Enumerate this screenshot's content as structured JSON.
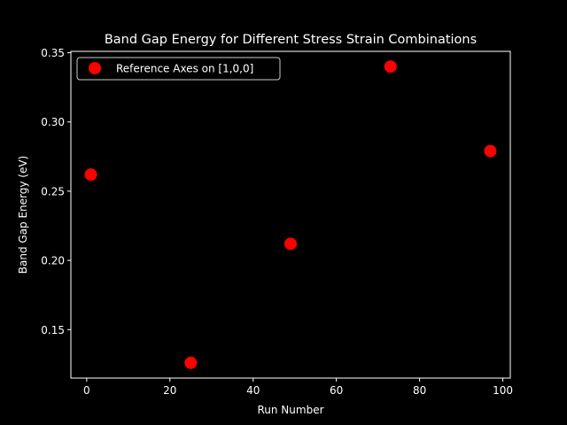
{
  "chart_data": {
    "type": "scatter",
    "title": "Band Gap Energy for Different Stress Strain Combinations",
    "xlabel": "Run Number",
    "ylabel": "Band Gap Energy (eV)",
    "xlim": [
      -3.8,
      101.8
    ],
    "ylim": [
      0.115,
      0.351
    ],
    "xticks": [
      0,
      20,
      40,
      60,
      80,
      100
    ],
    "yticks": [
      0.15,
      0.2,
      0.25,
      0.3,
      0.35
    ],
    "ytick_labels": [
      "0.15",
      "0.20",
      "0.25",
      "0.30",
      "0.35"
    ],
    "grid": false,
    "legend_position": "top-left",
    "series": [
      {
        "name": "Reference Axes on [1,0,0]",
        "color": "#ff0000",
        "x": [
          1,
          25,
          49,
          73,
          97
        ],
        "y": [
          0.262,
          0.126,
          0.212,
          0.34,
          0.279
        ]
      }
    ],
    "colors": {
      "background": "#000000",
      "foreground": "#ffffff",
      "marker": "#ff0000"
    }
  }
}
